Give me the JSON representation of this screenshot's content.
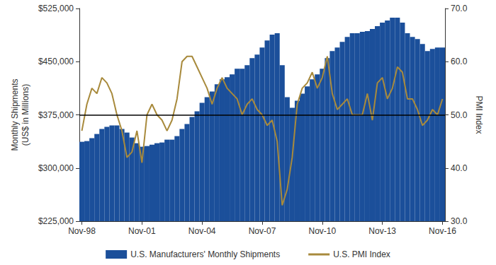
{
  "chart_data": {
    "type": "bar",
    "categories": [
      "Nov-98",
      null,
      null,
      null,
      null,
      null,
      null,
      null,
      null,
      null,
      null,
      null,
      "Nov-01",
      null,
      null,
      null,
      null,
      null,
      null,
      null,
      null,
      null,
      null,
      null,
      "Nov-04",
      null,
      null,
      null,
      null,
      null,
      null,
      null,
      null,
      null,
      null,
      null,
      "Nov-07",
      null,
      null,
      null,
      null,
      null,
      null,
      null,
      null,
      null,
      null,
      null,
      "Nov-10",
      null,
      null,
      null,
      null,
      null,
      null,
      null,
      null,
      null,
      null,
      null,
      "Nov-13",
      null,
      null,
      null,
      null,
      null,
      null,
      null,
      null,
      null,
      null,
      null,
      "Nov-16"
    ],
    "ylabel": "Monthly Shipments\n(US$ in Millions)",
    "y2label": "PMI Index",
    "ylim": [
      225000,
      525000
    ],
    "yticks": [
      {
        "value": 225000,
        "label": "$225,000"
      },
      {
        "value": 300000,
        "label": "$300,000"
      },
      {
        "value": 375000,
        "label": "$375,000"
      },
      {
        "value": 450000,
        "label": "$450,000"
      },
      {
        "value": 525000,
        "label": "$525,000"
      }
    ],
    "y2lim": [
      30,
      70
    ],
    "y2ticks": [
      {
        "value": 30,
        "label": "30.0"
      },
      {
        "value": 40,
        "label": "40.0"
      },
      {
        "value": 50,
        "label": "50.0"
      },
      {
        "value": 60,
        "label": "60.0"
      },
      {
        "value": 70,
        "label": "70.0"
      }
    ],
    "reference_line": {
      "value": 50,
      "axis": "y2",
      "color": "#000000"
    },
    "grid": false,
    "legend": "bottom",
    "series": [
      {
        "name": "U.S. Manufacturers' Monthly Shipments",
        "type": "bar",
        "color": "#1b4f9a",
        "values": [
          337000,
          338000,
          342000,
          348000,
          355000,
          358000,
          360000,
          360000,
          355000,
          350000,
          343000,
          335000,
          330000,
          331000,
          333000,
          335000,
          336000,
          340000,
          340000,
          345000,
          355000,
          362000,
          372000,
          380000,
          392000,
          400000,
          408000,
          418000,
          425000,
          428000,
          432000,
          440000,
          440000,
          445000,
          455000,
          460000,
          470000,
          480000,
          488000,
          490000,
          445000,
          400000,
          385000,
          395000,
          405000,
          415000,
          425000,
          432000,
          440000,
          455000,
          465000,
          470000,
          478000,
          485000,
          490000,
          490000,
          492000,
          493000,
          496000,
          500000,
          505000,
          508000,
          512000,
          512000,
          505000,
          490000,
          485000,
          482000,
          475000,
          465000,
          468000,
          470000,
          470000
        ]
      },
      {
        "name": "U.S. PMI Index",
        "type": "line",
        "axis": "y2",
        "color": "#a88a3c",
        "values": [
          47,
          52,
          55,
          54,
          57,
          56,
          54,
          50,
          47,
          42,
          43,
          47,
          41,
          50,
          52,
          50,
          49,
          47,
          49,
          53,
          60,
          61,
          61,
          59,
          57,
          55,
          52,
          55,
          57,
          55,
          54,
          53,
          50,
          52,
          53,
          51,
          50,
          48,
          49,
          45,
          33,
          36,
          42,
          52,
          55,
          56,
          58,
          55,
          57,
          61,
          54,
          51,
          52,
          53,
          50,
          50,
          50,
          54,
          49,
          56,
          57,
          53,
          55,
          59,
          58,
          53,
          53,
          51,
          48,
          49,
          51,
          50,
          53
        ]
      }
    ]
  }
}
